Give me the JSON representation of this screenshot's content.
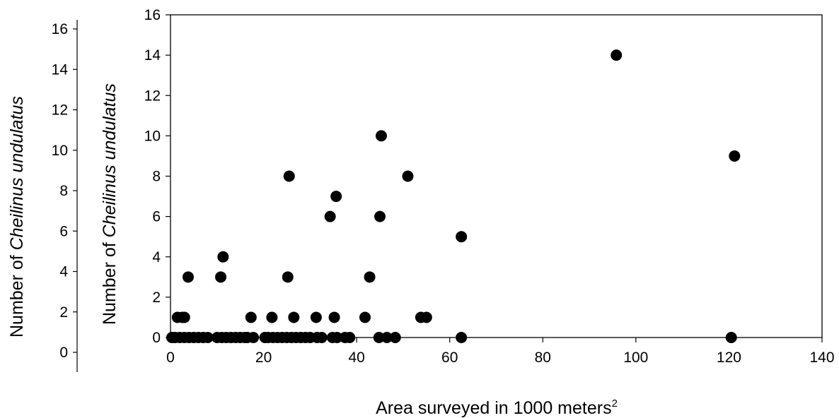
{
  "chart_data": {
    "type": "scatter",
    "title": "",
    "xlabel": "Area surveyed in 1000 meters",
    "xlabel_superscript": "2",
    "ylabel_prefix": "Number of ",
    "ylabel_species": "Cheilinus undulatus",
    "xlim": [
      0,
      140
    ],
    "ylim": [
      0,
      16
    ],
    "x_ticks": [
      0,
      20,
      40,
      60,
      80,
      100,
      120,
      140
    ],
    "y_ticks": [
      0,
      2,
      4,
      6,
      8,
      10,
      12,
      14,
      16
    ],
    "grid": false,
    "legend": "none",
    "marker_color": "#000000",
    "points": [
      {
        "x": 0.3,
        "y": 0
      },
      {
        "x": 1.0,
        "y": 0
      },
      {
        "x": 1.5,
        "y": 1
      },
      {
        "x": 2.0,
        "y": 0
      },
      {
        "x": 2.5,
        "y": 1
      },
      {
        "x": 3.0,
        "y": 0
      },
      {
        "x": 3.0,
        "y": 1
      },
      {
        "x": 3.8,
        "y": 3
      },
      {
        "x": 4.0,
        "y": 0
      },
      {
        "x": 5.0,
        "y": 0
      },
      {
        "x": 6.0,
        "y": 0
      },
      {
        "x": 7.0,
        "y": 0
      },
      {
        "x": 8.0,
        "y": 0
      },
      {
        "x": 10.0,
        "y": 0
      },
      {
        "x": 10.8,
        "y": 3
      },
      {
        "x": 11.0,
        "y": 0
      },
      {
        "x": 11.3,
        "y": 4
      },
      {
        "x": 12.0,
        "y": 0
      },
      {
        "x": 13.0,
        "y": 0
      },
      {
        "x": 14.0,
        "y": 0
      },
      {
        "x": 15.0,
        "y": 0
      },
      {
        "x": 16.0,
        "y": 0
      },
      {
        "x": 16.5,
        "y": 0
      },
      {
        "x": 17.3,
        "y": 1
      },
      {
        "x": 17.8,
        "y": 0
      },
      {
        "x": 20.3,
        "y": 0
      },
      {
        "x": 21.0,
        "y": 0
      },
      {
        "x": 21.8,
        "y": 1
      },
      {
        "x": 22.0,
        "y": 0
      },
      {
        "x": 23.0,
        "y": 0
      },
      {
        "x": 24.0,
        "y": 0
      },
      {
        "x": 25.0,
        "y": 0
      },
      {
        "x": 25.2,
        "y": 3
      },
      {
        "x": 25.5,
        "y": 8
      },
      {
        "x": 26.0,
        "y": 0
      },
      {
        "x": 26.5,
        "y": 1
      },
      {
        "x": 27.0,
        "y": 0
      },
      {
        "x": 28.0,
        "y": 0
      },
      {
        "x": 29.0,
        "y": 0
      },
      {
        "x": 30.0,
        "y": 0
      },
      {
        "x": 31.3,
        "y": 1
      },
      {
        "x": 31.5,
        "y": 0
      },
      {
        "x": 32.5,
        "y": 0
      },
      {
        "x": 34.3,
        "y": 6
      },
      {
        "x": 34.8,
        "y": 0
      },
      {
        "x": 35.2,
        "y": 1
      },
      {
        "x": 35.6,
        "y": 7
      },
      {
        "x": 35.8,
        "y": 0
      },
      {
        "x": 37.5,
        "y": 0
      },
      {
        "x": 38.5,
        "y": 0
      },
      {
        "x": 41.8,
        "y": 1
      },
      {
        "x": 42.8,
        "y": 3
      },
      {
        "x": 44.8,
        "y": 0
      },
      {
        "x": 45.0,
        "y": 6
      },
      {
        "x": 45.3,
        "y": 10
      },
      {
        "x": 46.5,
        "y": 0
      },
      {
        "x": 48.3,
        "y": 0
      },
      {
        "x": 51.0,
        "y": 8
      },
      {
        "x": 53.8,
        "y": 1
      },
      {
        "x": 55.0,
        "y": 1
      },
      {
        "x": 62.5,
        "y": 0
      },
      {
        "x": 62.5,
        "y": 5
      },
      {
        "x": 95.8,
        "y": 14
      },
      {
        "x": 120.5,
        "y": 0
      },
      {
        "x": 121.2,
        "y": 9
      }
    ]
  }
}
